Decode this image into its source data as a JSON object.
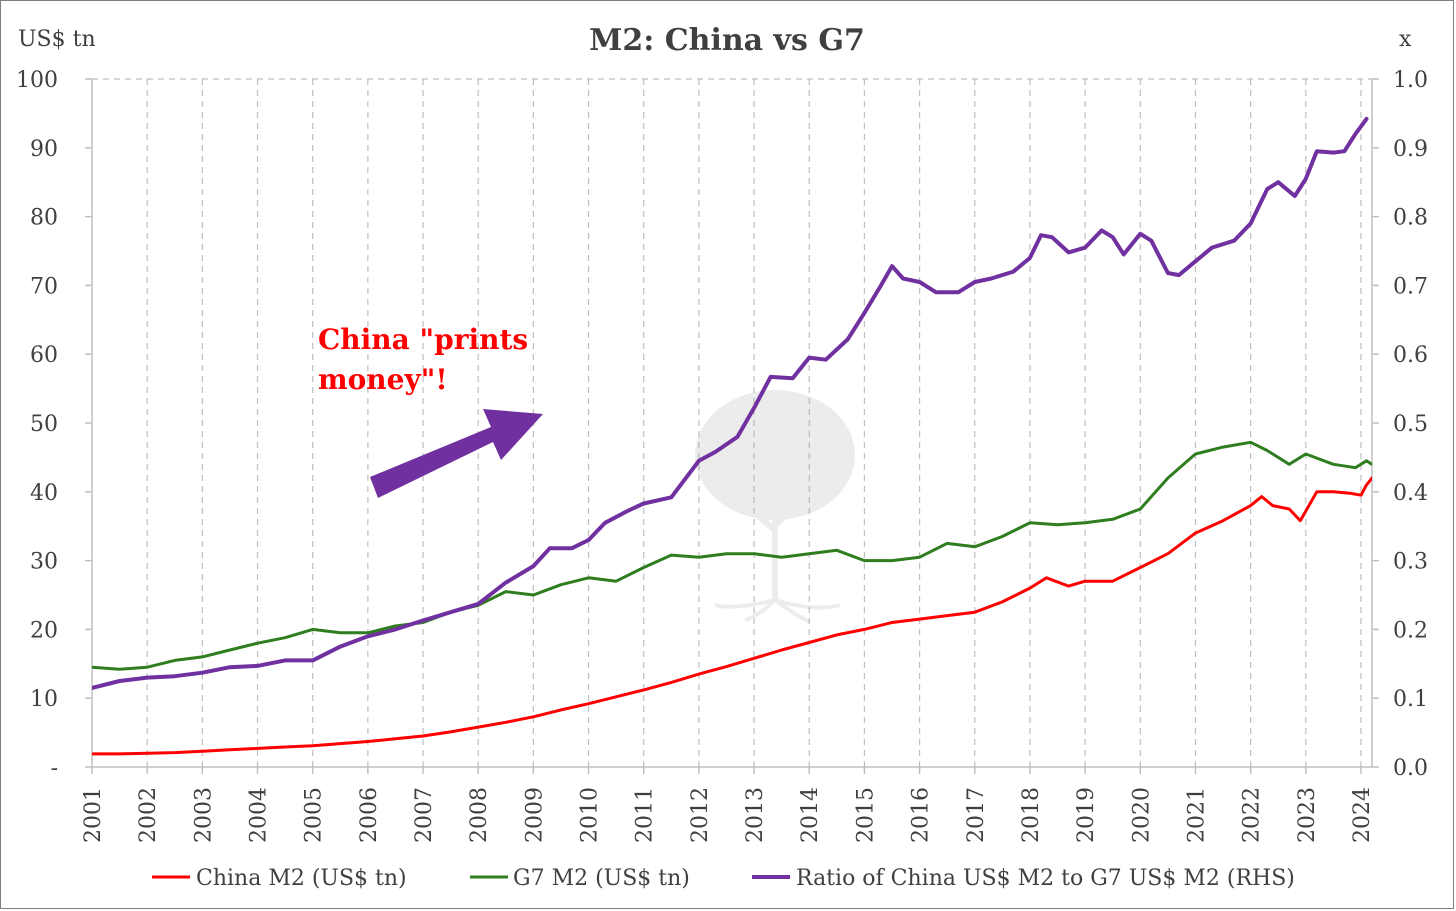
{
  "chart_data": {
    "type": "line",
    "title": "M2: China vs G7",
    "ylabel": "US$ tn",
    "y2label": "x",
    "ylim": [
      0,
      100
    ],
    "y2lim": [
      0,
      1.0
    ],
    "yticks": [
      "-",
      "10",
      "20",
      "30",
      "40",
      "50",
      "60",
      "70",
      "80",
      "90",
      "100"
    ],
    "y2ticks": [
      "0.0",
      "0.1",
      "0.2",
      "0.3",
      "0.4",
      "0.5",
      "0.6",
      "0.7",
      "0.8",
      "0.9",
      "1.0"
    ],
    "xlim": [
      2001,
      2024.2
    ],
    "xticks": [
      "2001",
      "2002",
      "2003",
      "2004",
      "2005",
      "2006",
      "2007",
      "2008",
      "2009",
      "2010",
      "2011",
      "2012",
      "2013",
      "2014",
      "2015",
      "2016",
      "2017",
      "2018",
      "2019",
      "2020",
      "2021",
      "2022",
      "2023",
      "2024"
    ],
    "grid": "vertical dashed",
    "legend_position": "bottom",
    "annotation": {
      "lines": [
        "China \"prints",
        "money\"!"
      ],
      "color": "#ff0000",
      "arrow_color": "#7030a0"
    },
    "series": [
      {
        "name": "China M2 (US$ tn)",
        "axis": "left",
        "color": "#ff0000",
        "points": [
          [
            2001.0,
            1.9
          ],
          [
            2001.5,
            1.9
          ],
          [
            2002.0,
            2.0
          ],
          [
            2002.5,
            2.1
          ],
          [
            2003.0,
            2.3
          ],
          [
            2003.5,
            2.5
          ],
          [
            2004.0,
            2.7
          ],
          [
            2004.5,
            2.9
          ],
          [
            2005.0,
            3.1
          ],
          [
            2005.5,
            3.4
          ],
          [
            2006.0,
            3.7
          ],
          [
            2006.5,
            4.1
          ],
          [
            2007.0,
            4.5
          ],
          [
            2007.5,
            5.1
          ],
          [
            2008.0,
            5.8
          ],
          [
            2008.5,
            6.5
          ],
          [
            2009.0,
            7.3
          ],
          [
            2009.5,
            8.3
          ],
          [
            2010.0,
            9.2
          ],
          [
            2010.5,
            10.2
          ],
          [
            2011.0,
            11.2
          ],
          [
            2011.5,
            12.3
          ],
          [
            2012.0,
            13.5
          ],
          [
            2012.5,
            14.6
          ],
          [
            2013.0,
            15.8
          ],
          [
            2013.5,
            17.0
          ],
          [
            2014.0,
            18.1
          ],
          [
            2014.5,
            19.2
          ],
          [
            2015.0,
            20.0
          ],
          [
            2015.5,
            21.0
          ],
          [
            2016.0,
            21.5
          ],
          [
            2016.5,
            22.0
          ],
          [
            2017.0,
            22.5
          ],
          [
            2017.5,
            24.0
          ],
          [
            2018.0,
            26.0
          ],
          [
            2018.3,
            27.5
          ],
          [
            2018.7,
            26.3
          ],
          [
            2019.0,
            27.0
          ],
          [
            2019.5,
            27.0
          ],
          [
            2020.0,
            29.0
          ],
          [
            2020.5,
            31.0
          ],
          [
            2021.0,
            34.0
          ],
          [
            2021.5,
            35.8
          ],
          [
            2022.0,
            38.0
          ],
          [
            2022.2,
            39.3
          ],
          [
            2022.4,
            38.0
          ],
          [
            2022.7,
            37.5
          ],
          [
            2022.9,
            35.8
          ],
          [
            2023.2,
            40.0
          ],
          [
            2023.5,
            40.0
          ],
          [
            2023.8,
            39.8
          ],
          [
            2024.0,
            39.5
          ],
          [
            2024.1,
            41.0
          ],
          [
            2024.2,
            42.0
          ]
        ]
      },
      {
        "name": "G7 M2 (US$ tn)",
        "axis": "left",
        "color": "#2e7d1e",
        "points": [
          [
            2001.0,
            14.5
          ],
          [
            2001.5,
            14.2
          ],
          [
            2002.0,
            14.5
          ],
          [
            2002.5,
            15.5
          ],
          [
            2003.0,
            16.0
          ],
          [
            2003.5,
            17.0
          ],
          [
            2004.0,
            18.0
          ],
          [
            2004.5,
            18.8
          ],
          [
            2005.0,
            20.0
          ],
          [
            2005.5,
            19.5
          ],
          [
            2006.0,
            19.5
          ],
          [
            2006.5,
            20.5
          ],
          [
            2007.0,
            21.0
          ],
          [
            2007.5,
            22.5
          ],
          [
            2008.0,
            23.5
          ],
          [
            2008.5,
            25.5
          ],
          [
            2009.0,
            25.0
          ],
          [
            2009.5,
            26.5
          ],
          [
            2010.0,
            27.5
          ],
          [
            2010.5,
            27.0
          ],
          [
            2011.0,
            29.0
          ],
          [
            2011.5,
            30.8
          ],
          [
            2012.0,
            30.5
          ],
          [
            2012.5,
            31.0
          ],
          [
            2013.0,
            31.0
          ],
          [
            2013.5,
            30.5
          ],
          [
            2014.0,
            31.0
          ],
          [
            2014.5,
            31.5
          ],
          [
            2015.0,
            30.0
          ],
          [
            2015.5,
            30.0
          ],
          [
            2016.0,
            30.5
          ],
          [
            2016.5,
            32.5
          ],
          [
            2017.0,
            32.0
          ],
          [
            2017.5,
            33.5
          ],
          [
            2018.0,
            35.5
          ],
          [
            2018.5,
            35.2
          ],
          [
            2019.0,
            35.5
          ],
          [
            2019.5,
            36.0
          ],
          [
            2020.0,
            37.5
          ],
          [
            2020.5,
            42.0
          ],
          [
            2021.0,
            45.5
          ],
          [
            2021.5,
            46.5
          ],
          [
            2022.0,
            47.2
          ],
          [
            2022.3,
            46.0
          ],
          [
            2022.7,
            44.0
          ],
          [
            2023.0,
            45.5
          ],
          [
            2023.5,
            44.0
          ],
          [
            2023.9,
            43.5
          ],
          [
            2024.1,
            44.5
          ],
          [
            2024.2,
            44.0
          ]
        ]
      },
      {
        "name": "Ratio of China US$ M2 to G7 US$ M2 (RHS)",
        "axis": "right",
        "color": "#7030a0",
        "points": [
          [
            2001.0,
            0.115
          ],
          [
            2001.5,
            0.125
          ],
          [
            2002.0,
            0.13
          ],
          [
            2002.5,
            0.132
          ],
          [
            2003.0,
            0.137
          ],
          [
            2003.5,
            0.145
          ],
          [
            2004.0,
            0.147
          ],
          [
            2004.5,
            0.155
          ],
          [
            2005.0,
            0.155
          ],
          [
            2005.5,
            0.175
          ],
          [
            2006.0,
            0.19
          ],
          [
            2006.5,
            0.2
          ],
          [
            2007.0,
            0.213
          ],
          [
            2007.5,
            0.225
          ],
          [
            2008.0,
            0.237
          ],
          [
            2008.5,
            0.268
          ],
          [
            2009.0,
            0.292
          ],
          [
            2009.3,
            0.318
          ],
          [
            2009.7,
            0.318
          ],
          [
            2010.0,
            0.33
          ],
          [
            2010.3,
            0.355
          ],
          [
            2010.7,
            0.372
          ],
          [
            2011.0,
            0.383
          ],
          [
            2011.5,
            0.392
          ],
          [
            2012.0,
            0.445
          ],
          [
            2012.3,
            0.458
          ],
          [
            2012.7,
            0.48
          ],
          [
            2013.0,
            0.522
          ],
          [
            2013.3,
            0.567
          ],
          [
            2013.7,
            0.565
          ],
          [
            2014.0,
            0.595
          ],
          [
            2014.3,
            0.592
          ],
          [
            2014.7,
            0.622
          ],
          [
            2015.0,
            0.66
          ],
          [
            2015.3,
            0.7
          ],
          [
            2015.5,
            0.728
          ],
          [
            2015.7,
            0.71
          ],
          [
            2016.0,
            0.705
          ],
          [
            2016.3,
            0.69
          ],
          [
            2016.7,
            0.69
          ],
          [
            2017.0,
            0.705
          ],
          [
            2017.3,
            0.71
          ],
          [
            2017.7,
            0.72
          ],
          [
            2018.0,
            0.74
          ],
          [
            2018.2,
            0.773
          ],
          [
            2018.4,
            0.77
          ],
          [
            2018.7,
            0.748
          ],
          [
            2019.0,
            0.755
          ],
          [
            2019.3,
            0.78
          ],
          [
            2019.5,
            0.77
          ],
          [
            2019.7,
            0.745
          ],
          [
            2020.0,
            0.775
          ],
          [
            2020.2,
            0.765
          ],
          [
            2020.5,
            0.718
          ],
          [
            2020.7,
            0.715
          ],
          [
            2021.0,
            0.735
          ],
          [
            2021.3,
            0.755
          ],
          [
            2021.7,
            0.765
          ],
          [
            2022.0,
            0.79
          ],
          [
            2022.3,
            0.84
          ],
          [
            2022.5,
            0.85
          ],
          [
            2022.8,
            0.83
          ],
          [
            2023.0,
            0.855
          ],
          [
            2023.2,
            0.895
          ],
          [
            2023.5,
            0.893
          ],
          [
            2023.7,
            0.895
          ],
          [
            2023.9,
            0.92
          ],
          [
            2024.1,
            0.942
          ]
        ]
      }
    ]
  }
}
